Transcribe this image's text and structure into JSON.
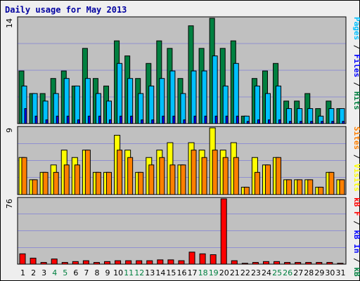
{
  "chart_data": {
    "type": "bar",
    "title": "Daily usage for May 2013",
    "categories": [
      "1",
      "2",
      "3",
      "4",
      "5",
      "6",
      "7",
      "8",
      "9",
      "10",
      "11",
      "12",
      "13",
      "14",
      "15",
      "16",
      "17",
      "18",
      "19",
      "20",
      "21",
      "22",
      "23",
      "24",
      "25",
      "26",
      "27",
      "28",
      "29",
      "30",
      "31"
    ],
    "weekend_days": [
      "4",
      "5",
      "11",
      "12",
      "18",
      "19",
      "25",
      "26"
    ],
    "panels": [
      {
        "name": "hits-files-pages",
        "ymax_label": "14",
        "ylim": [
          0,
          14
        ],
        "ylabel_parts": [
          {
            "text": "Pages",
            "color": "#00c0ff"
          },
          {
            "text": " / ",
            "color": "#000000"
          },
          {
            "text": "Files",
            "color": "#0000ff"
          },
          {
            "text": " / ",
            "color": "#000000"
          },
          {
            "text": "Hits",
            "color": "#008040"
          }
        ],
        "series": [
          {
            "name": "Hits",
            "color": "#008040",
            "values": [
              7,
              4,
              4,
              6,
              7,
              5,
              10,
              6,
              5,
              11,
              9,
              6,
              8,
              11,
              10,
              6,
              13,
              10,
              14,
              10,
              11,
              1,
              6,
              7,
              8,
              3,
              3,
              4,
              2,
              3,
              2
            ]
          },
          {
            "name": "Pages",
            "color": "#00c0ff",
            "values": [
              5,
              4,
              3,
              4,
              6,
              5,
              6,
              4,
              3,
              8,
              6,
              4,
              5,
              6,
              7,
              4,
              7,
              7,
              9,
              5,
              8,
              1,
              5,
              4,
              5,
              2,
              2,
              2,
              1,
              2,
              2
            ]
          },
          {
            "name": "Files",
            "color": "#0000ff",
            "values": [
              2,
              1,
              0.5,
              1,
              1,
              0.5,
              1,
              1,
              0.5,
              1,
              1,
              0.5,
              0.5,
              1,
              1,
              0.5,
              1,
              1,
              1,
              1,
              1,
              0.3,
              0.5,
              0.5,
              0.5,
              0.3,
              0.3,
              0.3,
              0.3,
              0.3,
              0.3
            ]
          }
        ]
      },
      {
        "name": "visits-sites",
        "ymax_label": "9",
        "ylim": [
          0,
          9
        ],
        "ylabel_parts": [
          {
            "text": "Sites",
            "color": "#ff8000"
          },
          {
            "text": " / ",
            "color": "#000000"
          },
          {
            "text": "Visits",
            "color": "#ffff00"
          }
        ],
        "series": [
          {
            "name": "Visits",
            "color": "#ffff00",
            "values": [
              5,
              2,
              3,
              4,
              6,
              5,
              6,
              3,
              3,
              8,
              6,
              3,
              5,
              6,
              7,
              4,
              7,
              6,
              9,
              6,
              7,
              1,
              5,
              4,
              5,
              2,
              2,
              2,
              1,
              3,
              2
            ]
          },
          {
            "name": "Sites",
            "color": "#ff8000",
            "values": [
              5,
              2,
              3,
              3,
              4,
              4,
              6,
              3,
              3,
              6,
              5,
              3,
              4,
              5,
              4,
              4,
              6,
              5,
              6,
              5,
              5,
              1,
              3,
              4,
              5,
              2,
              2,
              2,
              1,
              3,
              2
            ]
          }
        ]
      },
      {
        "name": "kb",
        "ymax_label": "76",
        "ylim": [
          0,
          76
        ],
        "ylabel_parts": [
          {
            "text": "kB F",
            "color": "#ff0000"
          },
          {
            "text": " / ",
            "color": "#000000"
          },
          {
            "text": "kB In",
            "color": "#0000ff"
          },
          {
            "text": " / ",
            "color": "#000000"
          },
          {
            "text": "kB Out",
            "color": "#008040"
          }
        ],
        "series": [
          {
            "name": "kB F",
            "color": "#ff0000",
            "values": [
              12,
              7,
              2,
              6,
              2,
              3,
              4,
              2,
              3,
              4,
              4,
              4,
              4,
              5,
              5,
              4,
              14,
              12,
              11,
              76,
              4,
              1,
              2,
              3,
              3,
              2,
              2,
              2,
              2,
              2,
              1
            ]
          }
        ]
      }
    ],
    "colors": {
      "plot_bg": "#c0c0c0",
      "frame_bg": "#eeeeee",
      "title": "#0000a0",
      "weekday_tick": "#000000",
      "weekend_tick": "#008040"
    }
  }
}
